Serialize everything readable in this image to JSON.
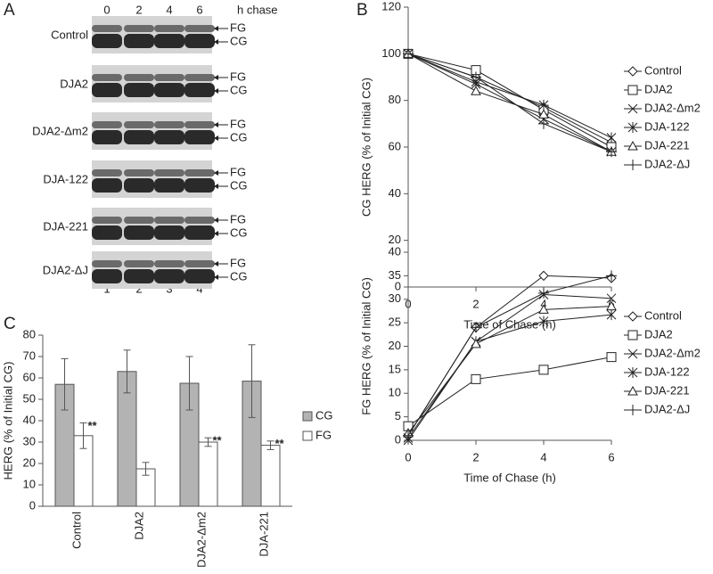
{
  "blot": {
    "panel_label": "A",
    "lanes": [
      "0",
      "2",
      "4",
      "6"
    ],
    "unit": "h chase",
    "lane_numbers": [
      "1",
      "2",
      "3",
      "4"
    ],
    "rows": [
      {
        "label": "Control",
        "upper": "FG",
        "lower": "CG"
      },
      {
        "label": "DJA2",
        "upper": "FG",
        "lower": "CG"
      },
      {
        "label": "DJA2-Δm2",
        "upper": "FG",
        "lower": "CG"
      },
      {
        "label": "DJA-122",
        "upper": "FG",
        "lower": "CG"
      },
      {
        "label": "DJA-221",
        "upper": "FG",
        "lower": "CG"
      },
      {
        "label": "DJA2-ΔJ",
        "upper": "FG",
        "lower": "CG"
      }
    ]
  },
  "chart_data": [
    {
      "type": "line",
      "panel_label": "B",
      "x_label": "Time of Chase (h)",
      "y_label": "CG HERG (% of Initial CG)",
      "x": [
        0,
        2,
        4,
        6
      ],
      "xlim": [
        0,
        6
      ],
      "xticks": [
        0,
        2,
        4,
        6
      ],
      "ylim": [
        0,
        120
      ],
      "yticks": [
        0,
        20,
        40,
        60,
        80,
        100,
        120
      ],
      "series": [
        {
          "name": "Control",
          "marker": "diamond",
          "color": "#222222",
          "values": [
            100,
            90,
            77,
            62
          ]
        },
        {
          "name": "DJA2",
          "marker": "square",
          "color": "#222222",
          "values": [
            100,
            93,
            76,
            60
          ]
        },
        {
          "name": "DJA2-Δm2",
          "marker": "x",
          "color": "#222222",
          "values": [
            100,
            87,
            72,
            58
          ]
        },
        {
          "name": "DJA-122",
          "marker": "asterisk",
          "color": "#222222",
          "values": [
            100,
            88,
            78,
            64
          ]
        },
        {
          "name": "DJA-221",
          "marker": "triangle",
          "color": "#222222",
          "values": [
            100,
            84,
            74,
            58
          ]
        },
        {
          "name": "DJA2-ΔJ",
          "marker": "plus",
          "color": "#222222",
          "values": [
            100,
            90,
            70,
            58
          ]
        }
      ]
    },
    {
      "type": "line",
      "x_label": "Time of Chase (h)",
      "y_label": "FG HERG (% of Initial CG)",
      "x": [
        0,
        2,
        4,
        6
      ],
      "xlim": [
        0,
        6
      ],
      "xticks": [
        0,
        2,
        4,
        6
      ],
      "ylim": [
        0,
        40
      ],
      "yticks": [
        0,
        5,
        10,
        15,
        20,
        25,
        30,
        35,
        40
      ],
      "series": [
        {
          "name": "Control",
          "marker": "diamond",
          "color": "#222222",
          "values": [
            1,
            24,
            35,
            34.5
          ]
        },
        {
          "name": "DJA2",
          "marker": "square",
          "color": "#222222",
          "values": [
            3,
            13,
            15,
            17.7
          ]
        },
        {
          "name": "DJA2-Δm2",
          "marker": "x",
          "color": "#222222",
          "values": [
            0,
            21,
            31,
            30.2
          ]
        },
        {
          "name": "DJA-122",
          "marker": "asterisk",
          "color": "#222222",
          "values": [
            0.5,
            21,
            25.3,
            26.7
          ]
        },
        {
          "name": "DJA-221",
          "marker": "triangle",
          "color": "#222222",
          "values": [
            1.5,
            20.5,
            27.8,
            28.5
          ]
        },
        {
          "name": "DJA2-ΔJ",
          "marker": "plus",
          "color": "#222222",
          "values": [
            1,
            24,
            31.3,
            35
          ]
        }
      ]
    },
    {
      "type": "bar",
      "panel_label": "C",
      "y_label": "HERG (% of Initial CG)",
      "categories": [
        "Control",
        "DJA2",
        "DJA2-Δm2",
        "DJA-221"
      ],
      "ylim": [
        0,
        80
      ],
      "yticks": [
        0,
        10,
        20,
        30,
        40,
        50,
        60,
        70,
        80
      ],
      "series": [
        {
          "name": "CG",
          "color": "#b3b3b3",
          "values": [
            57,
            63,
            57.5,
            58.5
          ],
          "errors": [
            12,
            10,
            12.5,
            17
          ]
        },
        {
          "name": "FG",
          "color": "#ffffff",
          "values": [
            33,
            17.5,
            30,
            28.5
          ],
          "errors": [
            6,
            3,
            2,
            2
          ]
        }
      ],
      "significance": [
        "**",
        null,
        "**",
        "**"
      ]
    }
  ]
}
